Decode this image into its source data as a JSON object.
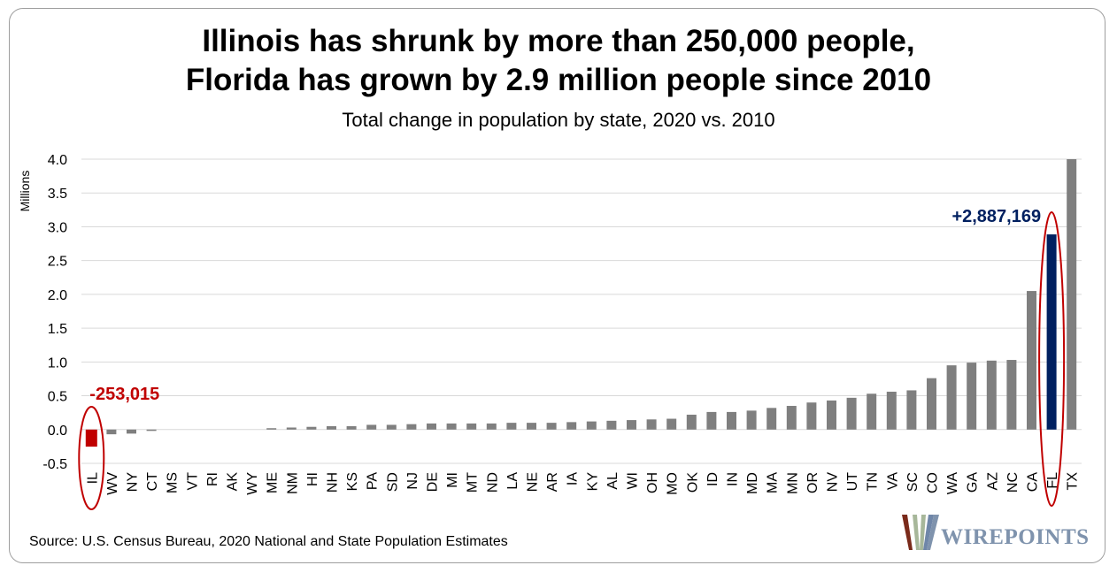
{
  "title_line1": "Illinois has shrunk by more than 250,000 people,",
  "title_line2": "Florida has grown by 2.9 million people since 2010",
  "subtitle": "Total change in population by state, 2020 vs. 2010",
  "source": "Source: U.S. Census Bureau, 2020 National and State Population Estimates",
  "logo_text": "WIREPOINTS",
  "colors": {
    "default_bar": "#7f7f7f",
    "illinois_bar": "#c00000",
    "florida_bar": "#002060",
    "highlight_ellipse": "#c00000",
    "grid": "#d9d9d9",
    "logo_text": "#7f93ad"
  },
  "chart_data": {
    "type": "bar",
    "title": "Illinois has shrunk by more than 250,000 people, Florida has grown by 2.9 million people since 2010",
    "subtitle": "Total change in population by state, 2020 vs. 2010",
    "ylabel": "Millions",
    "xlabel": "",
    "ylim": [
      -0.5,
      4.0
    ],
    "yticks": [
      "4.0",
      "3.5",
      "3.0",
      "2.5",
      "2.0",
      "1.5",
      "1.0",
      "0.5",
      "0.0",
      "-0.5"
    ],
    "ytick_values": [
      4.0,
      3.5,
      3.0,
      2.5,
      2.0,
      1.5,
      1.0,
      0.5,
      0.0,
      -0.5
    ],
    "grid": "horizontal",
    "categories": [
      "IL",
      "WV",
      "NY",
      "CT",
      "MS",
      "VT",
      "RI",
      "AK",
      "WY",
      "ME",
      "NM",
      "HI",
      "NH",
      "KS",
      "PA",
      "SD",
      "NJ",
      "DE",
      "MI",
      "MT",
      "ND",
      "LA",
      "NE",
      "AR",
      "IA",
      "KY",
      "AL",
      "WI",
      "OH",
      "MO",
      "OK",
      "ID",
      "IN",
      "MD",
      "MA",
      "MN",
      "OR",
      "NV",
      "UT",
      "TN",
      "VA",
      "SC",
      "CO",
      "WA",
      "GA",
      "AZ",
      "NC",
      "CA",
      "FL",
      "TX"
    ],
    "values": [
      -0.253,
      -0.07,
      -0.06,
      -0.02,
      0.0,
      0.0,
      0.0,
      0.0,
      0.0,
      0.02,
      0.03,
      0.04,
      0.05,
      0.05,
      0.07,
      0.07,
      0.08,
      0.09,
      0.09,
      0.09,
      0.09,
      0.1,
      0.1,
      0.1,
      0.11,
      0.12,
      0.13,
      0.14,
      0.15,
      0.16,
      0.22,
      0.26,
      0.26,
      0.28,
      0.32,
      0.35,
      0.4,
      0.43,
      0.47,
      0.53,
      0.56,
      0.58,
      0.76,
      0.95,
      0.99,
      1.02,
      1.03,
      2.05,
      2.887,
      4.0
    ],
    "highlights": {
      "IL": "illinois",
      "FL": "florida"
    },
    "annotations": [
      {
        "category": "IL",
        "text": "-253,015",
        "color": "#c00000"
      },
      {
        "category": "FL",
        "text": "+2,887,169",
        "color": "#002060"
      }
    ]
  }
}
